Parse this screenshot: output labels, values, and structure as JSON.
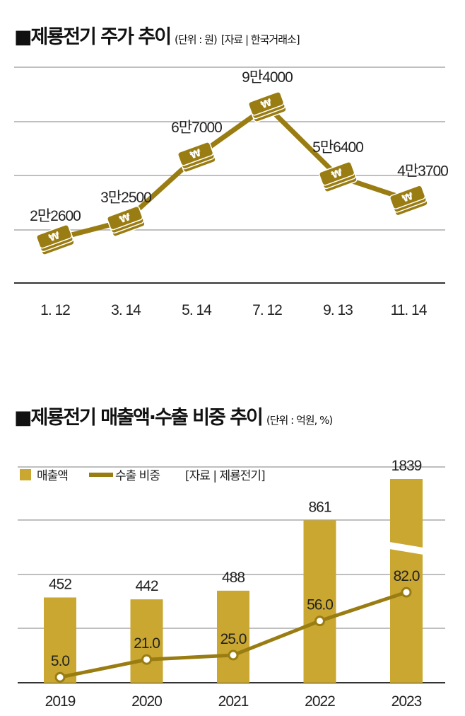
{
  "chart_data": [
    {
      "type": "line",
      "title": "제룡전기 주가 추이",
      "subtitle": "(단위 : 원)",
      "source": "[자료 | 한국거래소]",
      "categories": [
        "1. 12",
        "3. 14",
        "5. 14",
        "7. 12",
        "9. 13",
        "11. 14"
      ],
      "values": [
        22600,
        32500,
        67000,
        94000,
        56400,
        43700
      ],
      "data_labels": [
        "2만2600",
        "3만2500",
        "6만7000",
        "9만4000",
        "5만6400",
        "4만3700"
      ],
      "marker_icon": "won-coin-stack-icon",
      "grid": true,
      "colors": {
        "line": "#9a7d12",
        "grid": "#999999"
      }
    },
    {
      "type": "bar+line",
      "title": "제룡전기 매출액·수출 비중 추이",
      "subtitle": "(단위 : 억원, %)",
      "source": "[자료 | 제룡전기]",
      "categories": [
        "2019",
        "2020",
        "2021",
        "2022",
        "2023"
      ],
      "series": [
        {
          "name": "매출액",
          "type": "bar",
          "values": [
            452,
            442,
            488,
            861,
            1839
          ],
          "labels": [
            "452",
            "442",
            "488",
            "861",
            "1839"
          ],
          "color": "#c9a731"
        },
        {
          "name": "수출 비중",
          "type": "line",
          "values": [
            5.0,
            21.0,
            25.0,
            56.0,
            82.0
          ],
          "labels": [
            "5.0",
            "21.0",
            "25.0",
            "56.0",
            "82.0"
          ],
          "color": "#9a7d12"
        }
      ],
      "axis_break_on": "2023",
      "grid": true,
      "legend": "top-left"
    }
  ]
}
